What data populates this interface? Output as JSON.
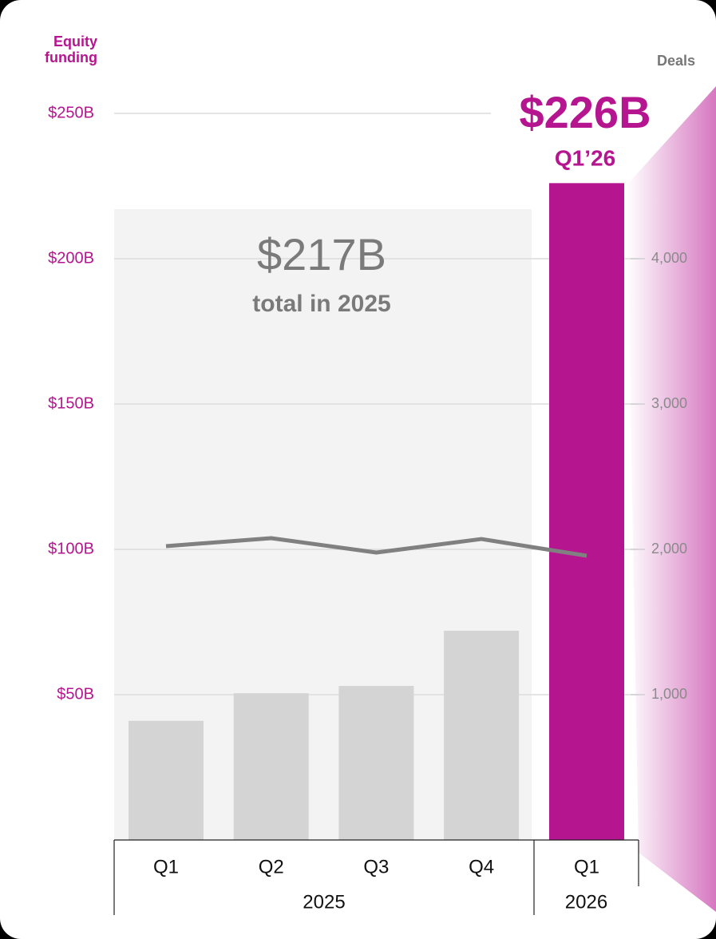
{
  "chart_data": {
    "type": "bar_line",
    "y_label": "Equity funding",
    "y2_label": "Deals",
    "categories": [
      "Q1",
      "Q2",
      "Q3",
      "Q4",
      "Q1"
    ],
    "group_labels": [
      "2025",
      "2026"
    ],
    "series": [
      {
        "type": "bar",
        "colors": [
          "#d4d4d4",
          "#d4d4d4",
          "#d4d4d4",
          "#d4d4d4",
          "#b5158f"
        ],
        "values": [
          41,
          50.5,
          53,
          72,
          226
        ]
      },
      {
        "type": "line",
        "axis": "y2",
        "color": "#808080",
        "values": [
          2022,
          2077,
          1978,
          2071,
          1956
        ]
      }
    ],
    "ylim": [
      0,
      250
    ],
    "yticks": [
      {
        "value": 50,
        "label": "$50B"
      },
      {
        "value": 100,
        "label": "$100B"
      },
      {
        "value": 150,
        "label": "$150B"
      },
      {
        "value": 200,
        "label": "$200B"
      },
      {
        "value": 250,
        "label": "$250B"
      }
    ],
    "y2lim": [
      0,
      5000
    ],
    "y2ticks": [
      {
        "value": 1000,
        "label": "1,000"
      },
      {
        "value": 2000,
        "label": "2,000"
      },
      {
        "value": 3000,
        "label": "3,000"
      },
      {
        "value": 4000,
        "label": "4,000"
      }
    ],
    "grid": true,
    "annotations": {
      "total_value": "$217B",
      "total_text": "total in 2025",
      "highlight_value": "$226B",
      "highlight_text": "Q1’26"
    }
  }
}
